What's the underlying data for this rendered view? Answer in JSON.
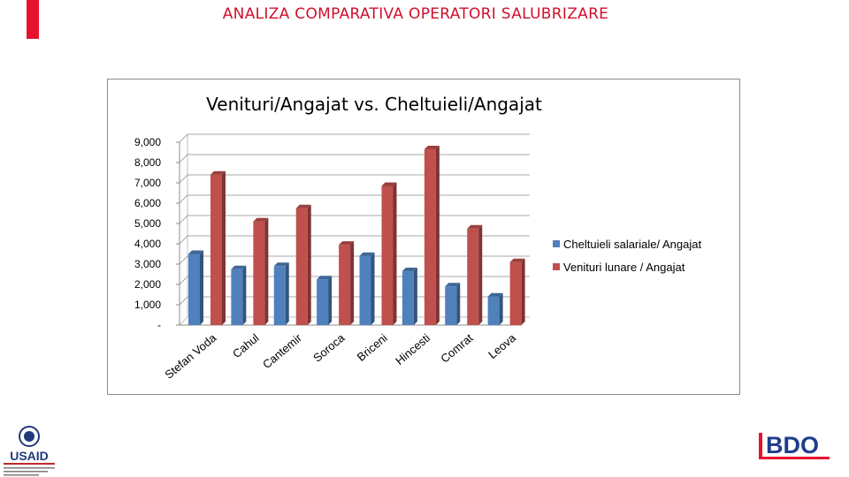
{
  "slide": {
    "title": "ANALIZA COMPARATIVA OPERATORI SALUBRIZARE",
    "accent_color": "#e8112d",
    "title_color": "#d0102a"
  },
  "logos": {
    "usaid": {
      "text": "USAID",
      "subtitle": "DIN PARTEA POPORULUI AMERICAN",
      "caption": "Proiectul de Susținere a Autorităților Locale din Moldova"
    },
    "bdo": {
      "text": "BDO",
      "color": "#1f3d8c",
      "accent": "#e8112d"
    }
  },
  "chart_data": {
    "type": "bar",
    "title": "Venituri/Angajat vs. Cheltuieli/Angajat",
    "categories": [
      "Stefan Voda",
      "Cahul",
      "Cantemir",
      "Soroca",
      "Briceni",
      "Hincesti",
      "Comrat",
      "Leova"
    ],
    "series": [
      {
        "name": "Cheltuieli salariale/ Angajat",
        "color": "#4f81bd",
        "values": [
          3500,
          2750,
          2900,
          2250,
          3400,
          2650,
          1900,
          1400
        ]
      },
      {
        "name": "Venituri lunare / Angajat",
        "color": "#c0504d",
        "values": [
          7400,
          5100,
          5750,
          3950,
          6850,
          8650,
          4750,
          3100
        ]
      }
    ],
    "ylim": [
      0,
      9000
    ],
    "yticks": [
      "-",
      "1,000",
      "2,000",
      "3,000",
      "4,000",
      "5,000",
      "6,000",
      "7,000",
      "8,000",
      "9,000"
    ],
    "grid": true,
    "legend": "right",
    "style": "3d-clustered-column"
  }
}
